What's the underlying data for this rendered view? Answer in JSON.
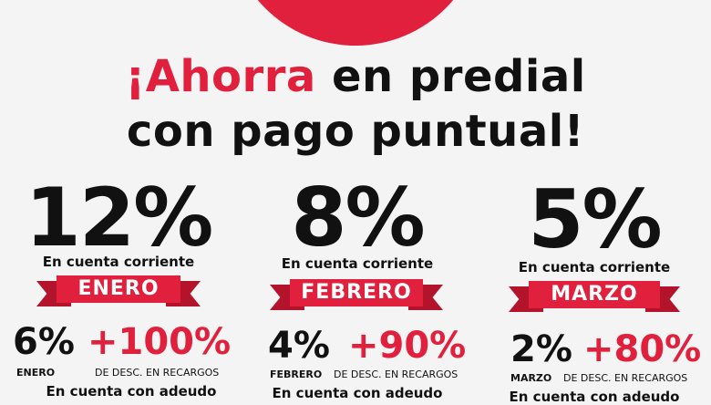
{
  "headline": {
    "line1_accent": "¡Ahorra",
    "line1_rest": " en predial",
    "line2": "con pago puntual!"
  },
  "sub_label": "En cuenta corriente",
  "debt_label": "En cuenta con adeudo",
  "recargos_label": "DE DESC. EN RECARGOS",
  "colors": {
    "accent": "#e0203c",
    "accent_dark": "#b4142b",
    "text": "#111111",
    "background": "#f4f4f4"
  },
  "months": [
    {
      "percent": "12%",
      "month": "ENERO",
      "debt_percent": "6%",
      "debt_month": "ENERO",
      "recargos": "+100%"
    },
    {
      "percent": "8%",
      "month": "FEBRERO",
      "debt_percent": "4%",
      "debt_month": "FEBRERO",
      "recargos": "+90%"
    },
    {
      "percent": "5%",
      "month": "MARZO",
      "debt_percent": "2%",
      "debt_month": "MARZO",
      "recargos": "+80%"
    }
  ]
}
